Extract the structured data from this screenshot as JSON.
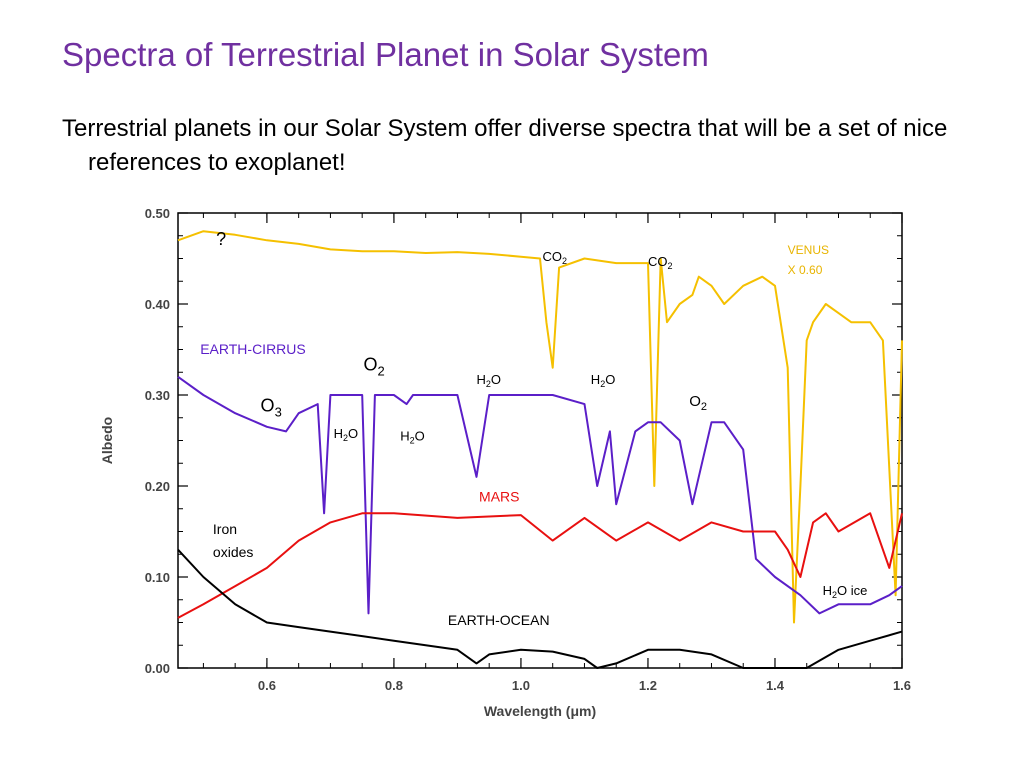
{
  "slide": {
    "title": "Spectra of Terrestrial Planet in Solar System",
    "body": "Terrestrial planets in our Solar System offer diverse spectra that will be a set of nice references to exoplanet!"
  },
  "chart_data": {
    "type": "line",
    "title": "",
    "xlabel": "Wavelength (μm)",
    "ylabel": "Albedo",
    "xlim": [
      0.46,
      1.6
    ],
    "ylim": [
      0.0,
      0.5
    ],
    "xticks": [
      0.6,
      0.8,
      1.0,
      1.2,
      1.4,
      1.6
    ],
    "xtick_labels": [
      "0.6",
      "0.8",
      "1.0",
      "1.2",
      "1.4",
      "1.6"
    ],
    "yticks": [
      0.0,
      0.1,
      0.2,
      0.3,
      0.4,
      0.5
    ],
    "ytick_labels": [
      "0.00",
      "0.10",
      "0.20",
      "0.30",
      "0.40",
      "0.50"
    ],
    "grid": false,
    "series": [
      {
        "name": "VENUS X 0.60",
        "color": "#f5c000",
        "x": [
          0.46,
          0.5,
          0.55,
          0.6,
          0.65,
          0.7,
          0.75,
          0.8,
          0.85,
          0.9,
          0.95,
          1.0,
          1.03,
          1.04,
          1.05,
          1.06,
          1.1,
          1.15,
          1.2,
          1.21,
          1.22,
          1.23,
          1.25,
          1.27,
          1.28,
          1.3,
          1.32,
          1.35,
          1.38,
          1.4,
          1.42,
          1.43,
          1.44,
          1.45,
          1.46,
          1.48,
          1.5,
          1.52,
          1.55,
          1.57,
          1.59,
          1.6
        ],
        "y": [
          0.47,
          0.48,
          0.476,
          0.47,
          0.466,
          0.46,
          0.458,
          0.458,
          0.456,
          0.457,
          0.455,
          0.452,
          0.45,
          0.38,
          0.33,
          0.44,
          0.45,
          0.445,
          0.445,
          0.2,
          0.45,
          0.38,
          0.4,
          0.41,
          0.43,
          0.42,
          0.4,
          0.42,
          0.43,
          0.42,
          0.33,
          0.05,
          0.2,
          0.36,
          0.38,
          0.4,
          0.39,
          0.38,
          0.38,
          0.36,
          0.08,
          0.36
        ]
      },
      {
        "name": "EARTH-CIRRUS",
        "color": "#5b1fc8",
        "x": [
          0.46,
          0.5,
          0.55,
          0.6,
          0.63,
          0.65,
          0.68,
          0.69,
          0.7,
          0.72,
          0.75,
          0.76,
          0.77,
          0.8,
          0.82,
          0.83,
          0.85,
          0.9,
          0.93,
          0.95,
          1.0,
          1.05,
          1.1,
          1.12,
          1.14,
          1.15,
          1.18,
          1.2,
          1.22,
          1.25,
          1.27,
          1.3,
          1.32,
          1.35,
          1.37,
          1.4,
          1.44,
          1.47,
          1.5,
          1.55,
          1.58,
          1.6
        ],
        "y": [
          0.32,
          0.3,
          0.28,
          0.265,
          0.26,
          0.28,
          0.29,
          0.17,
          0.3,
          0.3,
          0.3,
          0.06,
          0.3,
          0.3,
          0.29,
          0.3,
          0.3,
          0.3,
          0.21,
          0.3,
          0.3,
          0.3,
          0.29,
          0.2,
          0.26,
          0.18,
          0.26,
          0.27,
          0.27,
          0.25,
          0.18,
          0.27,
          0.27,
          0.24,
          0.12,
          0.1,
          0.08,
          0.06,
          0.07,
          0.07,
          0.08,
          0.09
        ]
      },
      {
        "name": "MARS",
        "color": "#e81010",
        "x": [
          0.46,
          0.5,
          0.55,
          0.6,
          0.65,
          0.7,
          0.75,
          0.8,
          0.9,
          1.0,
          1.05,
          1.1,
          1.15,
          1.2,
          1.25,
          1.3,
          1.35,
          1.4,
          1.42,
          1.44,
          1.46,
          1.48,
          1.5,
          1.55,
          1.58,
          1.6
        ],
        "y": [
          0.055,
          0.07,
          0.09,
          0.11,
          0.14,
          0.16,
          0.17,
          0.17,
          0.165,
          0.168,
          0.14,
          0.165,
          0.14,
          0.16,
          0.14,
          0.16,
          0.15,
          0.15,
          0.13,
          0.1,
          0.16,
          0.17,
          0.15,
          0.17,
          0.11,
          0.17
        ]
      },
      {
        "name": "EARTH-OCEAN",
        "color": "#000000",
        "x": [
          0.46,
          0.5,
          0.55,
          0.6,
          0.65,
          0.7,
          0.75,
          0.8,
          0.85,
          0.9,
          0.93,
          0.95,
          1.0,
          1.05,
          1.1,
          1.12,
          1.15,
          1.2,
          1.25,
          1.3,
          1.35,
          1.4,
          1.45,
          1.5,
          1.55,
          1.6
        ],
        "y": [
          0.13,
          0.1,
          0.07,
          0.05,
          0.045,
          0.04,
          0.035,
          0.03,
          0.025,
          0.02,
          0.005,
          0.015,
          0.02,
          0.018,
          0.01,
          0.0,
          0.005,
          0.02,
          0.02,
          0.015,
          0.0,
          0.0,
          0.0,
          0.02,
          0.03,
          0.04
        ]
      }
    ],
    "annotations": [
      {
        "text": "?",
        "x": 0.52,
        "y": 0.465,
        "color": "#000000",
        "size": 18
      },
      {
        "text": "CO",
        "sub": "2",
        "x": 1.034,
        "y": 0.447,
        "color": "#000000",
        "size": 13
      },
      {
        "text": "CO",
        "sub": "2",
        "x": 1.2,
        "y": 0.442,
        "color": "#000000",
        "size": 13
      },
      {
        "text": "VENUS",
        "x": 1.42,
        "y": 0.455,
        "color": "#e8b400",
        "size": 12
      },
      {
        "text": "X 0.60",
        "x": 1.42,
        "y": 0.433,
        "color": "#e8b400",
        "size": 12
      },
      {
        "text": "EARTH-CIRRUS",
        "x": 0.495,
        "y": 0.345,
        "color": "#5b1fc8",
        "size": 14
      },
      {
        "text": "O",
        "sub": "2",
        "x": 0.752,
        "y": 0.327,
        "color": "#000000",
        "size": 18
      },
      {
        "text": "O",
        "sub": "3",
        "x": 0.59,
        "y": 0.282,
        "color": "#000000",
        "size": 18
      },
      {
        "text": "H",
        "sub": "2",
        "tail": "O",
        "x": 0.93,
        "y": 0.312,
        "color": "#000000",
        "size": 13
      },
      {
        "text": "H",
        "sub": "2",
        "tail": "O",
        "x": 1.11,
        "y": 0.312,
        "color": "#000000",
        "size": 13
      },
      {
        "text": "O",
        "sub": "2",
        "x": 1.265,
        "y": 0.288,
        "color": "#000000",
        "size": 15
      },
      {
        "text": "H",
        "sub": "2",
        "tail": "O",
        "x": 0.705,
        "y": 0.253,
        "color": "#000000",
        "size": 13
      },
      {
        "text": "H",
        "sub": "2",
        "tail": "O",
        "x": 0.81,
        "y": 0.25,
        "color": "#000000",
        "size": 13
      },
      {
        "text": "MARS",
        "x": 0.934,
        "y": 0.183,
        "color": "#e81010",
        "size": 14
      },
      {
        "text": "Iron",
        "x": 0.515,
        "y": 0.147,
        "color": "#000000",
        "size": 14
      },
      {
        "text": "oxides",
        "x": 0.515,
        "y": 0.122,
        "color": "#000000",
        "size": 14
      },
      {
        "text": "H",
        "sub": "2",
        "tail": "O ice",
        "x": 1.475,
        "y": 0.08,
        "color": "#000000",
        "size": 13
      },
      {
        "text": "EARTH-OCEAN",
        "x": 0.885,
        "y": 0.047,
        "color": "#000000",
        "size": 14
      }
    ]
  }
}
